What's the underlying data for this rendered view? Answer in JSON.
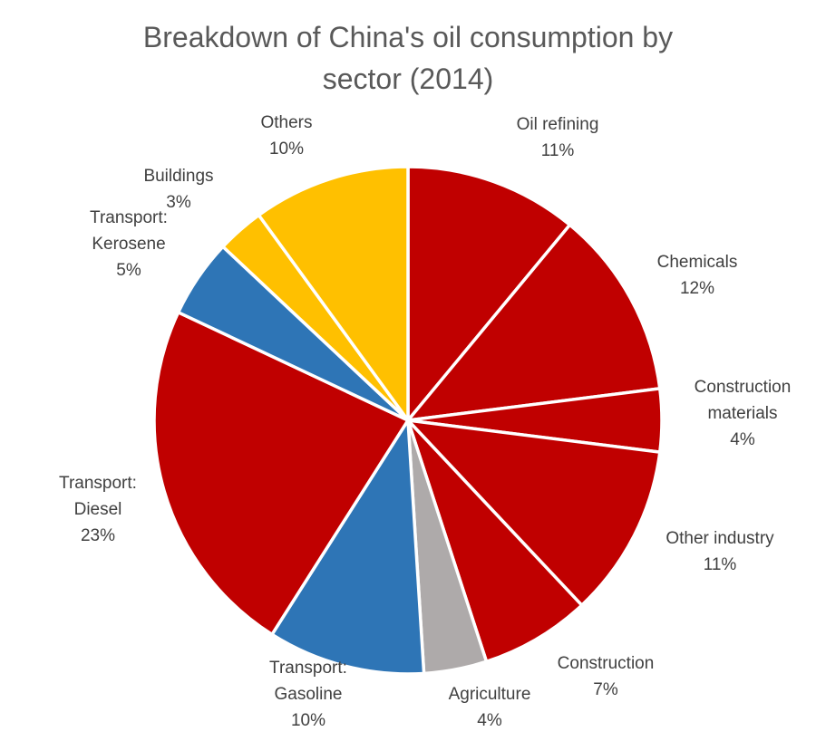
{
  "chart_data": {
    "type": "pie",
    "title_lines": [
      "Breakdown of China's oil consumption by",
      "sector (2014)"
    ],
    "start_angle_deg": 0,
    "direction": "clockwise",
    "slices": [
      {
        "name": "Oil refining",
        "label_lines": [
          "Oil refining"
        ],
        "value": 11,
        "display": "11%",
        "color": "#C00000"
      },
      {
        "name": "Chemicals",
        "label_lines": [
          "Chemicals"
        ],
        "value": 12,
        "display": "12%",
        "color": "#C00000"
      },
      {
        "name": "Construction materials",
        "label_lines": [
          "Construction",
          "materials"
        ],
        "value": 4,
        "display": "4%",
        "color": "#C00000"
      },
      {
        "name": "Other industry",
        "label_lines": [
          "Other industry"
        ],
        "value": 11,
        "display": "11%",
        "color": "#C00000"
      },
      {
        "name": "Construction",
        "label_lines": [
          "Construction"
        ],
        "value": 7,
        "display": "7%",
        "color": "#C00000"
      },
      {
        "name": "Agriculture",
        "label_lines": [
          "Agriculture"
        ],
        "value": 4,
        "display": "4%",
        "color": "#AEAAAA"
      },
      {
        "name": "Transport: Gasoline",
        "label_lines": [
          "Transport:",
          "Gasoline"
        ],
        "value": 10,
        "display": "10%",
        "color": "#2E75B6"
      },
      {
        "name": "Transport: Diesel",
        "label_lines": [
          "Transport:",
          "Diesel"
        ],
        "value": 23,
        "display": "23%",
        "color": "#C00000"
      },
      {
        "name": "Transport: Kerosene",
        "label_lines": [
          "Transport:",
          "Kerosene"
        ],
        "value": 5,
        "display": "5%",
        "color": "#2E75B6"
      },
      {
        "name": "Buildings",
        "label_lines": [
          "Buildings"
        ],
        "value": 3,
        "display": "3%",
        "color": "#FFC000"
      },
      {
        "name": "Others",
        "label_lines": [
          "Others"
        ],
        "value": 10,
        "display": "10%",
        "color": "#FFC000"
      }
    ]
  }
}
